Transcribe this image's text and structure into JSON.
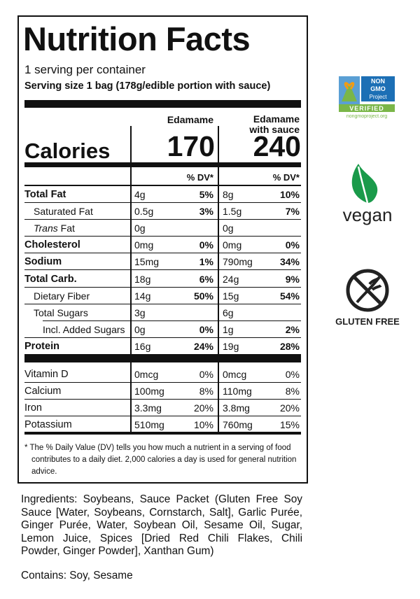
{
  "header": {
    "title": "Nutrition Facts",
    "servings": "1 serving per container",
    "serving_size": "Serving size 1 bag (178g/edible portion with sauce)"
  },
  "columns": [
    "Edamame",
    "Edamame with sauce"
  ],
  "calories": {
    "label": "Calories",
    "values": [
      "170",
      "240"
    ]
  },
  "dv_header": "% DV*",
  "nutrients": [
    {
      "name": "Total Fat",
      "bold": true,
      "indent": 0,
      "amounts": [
        "4g",
        "8g"
      ],
      "dv": [
        "5%",
        "10%"
      ]
    },
    {
      "name": "Saturated Fat",
      "bold": false,
      "indent": 1,
      "amounts": [
        "0.5g",
        "1.5g"
      ],
      "dv": [
        "3%",
        "7%"
      ]
    },
    {
      "name_italic": "Trans",
      "name": "Fat",
      "bold": false,
      "indent": 1,
      "amounts": [
        "0g",
        "0g"
      ],
      "dv": [
        null,
        null
      ]
    },
    {
      "name": "Cholesterol",
      "bold": true,
      "indent": 0,
      "amounts": [
        "0mg",
        "0mg"
      ],
      "dv": [
        "0%",
        "0%"
      ]
    },
    {
      "name": "Sodium",
      "bold": true,
      "indent": 0,
      "amounts": [
        "15mg",
        "790mg"
      ],
      "dv": [
        "1%",
        "34%"
      ]
    },
    {
      "name": "Total Carb.",
      "bold": true,
      "indent": 0,
      "amounts": [
        "18g",
        "24g"
      ],
      "dv": [
        "6%",
        "9%"
      ]
    },
    {
      "name": "Dietary Fiber",
      "bold": false,
      "indent": 1,
      "amounts": [
        "14g",
        "15g"
      ],
      "dv": [
        "50%",
        "54%"
      ]
    },
    {
      "name": "Total Sugars",
      "bold": false,
      "indent": 1,
      "amounts": [
        "3g",
        "6g"
      ],
      "dv": [
        null,
        null
      ]
    },
    {
      "name": "Incl. Added Sugars",
      "bold": false,
      "indent": 2,
      "amounts": [
        "0g",
        "1g"
      ],
      "dv": [
        "0%",
        "2%"
      ]
    },
    {
      "name": "Protein",
      "bold": true,
      "indent": 0,
      "amounts": [
        "16g",
        "19g"
      ],
      "dv": [
        "24%",
        "28%"
      ]
    }
  ],
  "vitamins": [
    {
      "name": "Vitamin D",
      "amounts": [
        "0mcg",
        "0mcg"
      ],
      "dv": [
        "0%",
        "0%"
      ]
    },
    {
      "name": "Calcium",
      "amounts": [
        "100mg",
        "110mg"
      ],
      "dv": [
        "8%",
        "8%"
      ]
    },
    {
      "name": "Iron",
      "amounts": [
        "3.3mg",
        "3.8mg"
      ],
      "dv": [
        "20%",
        "20%"
      ]
    },
    {
      "name": "Potassium",
      "amounts": [
        "510mg",
        "760mg"
      ],
      "dv": [
        "10%",
        "15%"
      ]
    }
  ],
  "footnote": "* The % Daily Value (DV) tells you how much a nutrient in a serving of food contributes to a daily diet. 2,000 calories a day is used for general nutrition advice.",
  "badges": {
    "non_gmo": [
      "NON",
      "GMO",
      "Project",
      "VERIFIED",
      "nongmoproject.org"
    ],
    "vegan": "vegan",
    "gluten_free": "GLUTEN FREE"
  },
  "ingredients": "Ingredients: Soybeans, Sauce Packet (Gluten Free Soy Sauce [Water, Soybeans, Cornstarch, Salt], Garlic Purée, Ginger Purée, Water, Soybean Oil, Sesame Oil, Sugar, Lemon Juice, Spices [Dried Red Chili Flakes, Chili Powder, Ginger Powder], Xanthan Gum)",
  "contains": "Contains: Soy, Sesame"
}
